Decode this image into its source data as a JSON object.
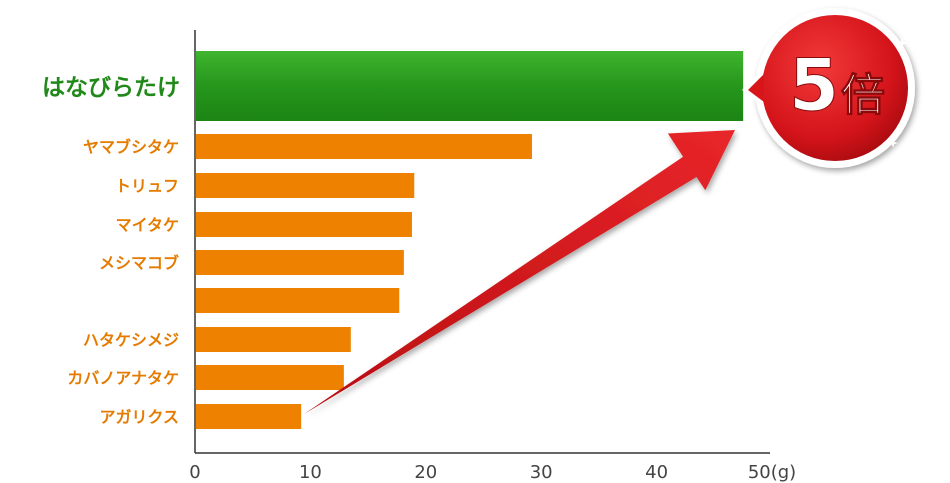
{
  "chart_data": {
    "type": "bar",
    "orientation": "horizontal",
    "categories": [
      "はなびらたけ",
      "ヤマブシタケ",
      "トリュフ",
      "マイタケ",
      "メシマコブ",
      "",
      "ハタケシメジ",
      "カバノアナタケ",
      "アガリクス"
    ],
    "values": [
      47.5,
      29.2,
      19.0,
      18.8,
      18.1,
      17.7,
      13.5,
      12.9,
      9.2
    ],
    "xlim": [
      0,
      50
    ],
    "xticks": [
      0,
      10,
      20,
      30,
      40
    ],
    "x_end_label": "50(g)",
    "highlight_index": 0,
    "grid": false,
    "callout": "5倍"
  },
  "colors": {
    "highlight": "#2a9a1e",
    "bar": "#ee8200",
    "highlight_label": "#21891a",
    "label": "#e57b00",
    "axis": "#333333",
    "arrow": "#cc1111",
    "badge": "#d8161a"
  }
}
